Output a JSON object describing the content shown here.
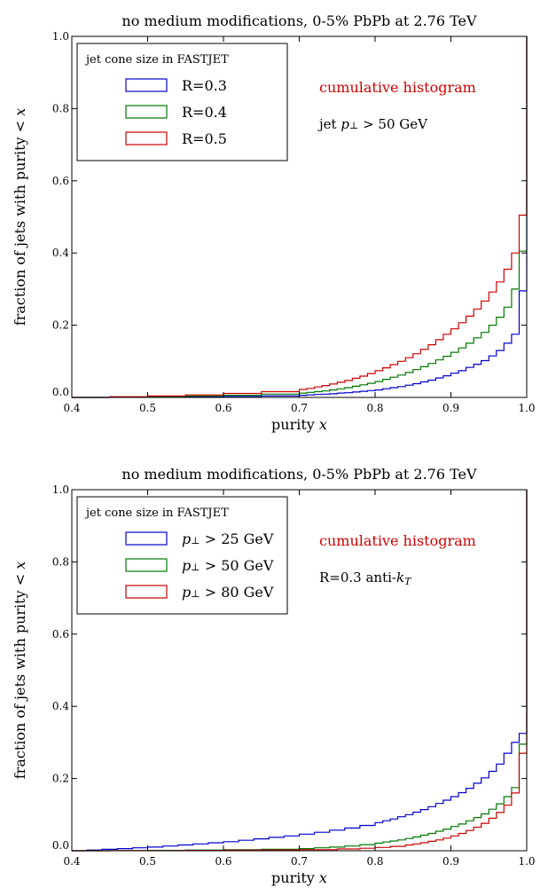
{
  "chart_data": [
    {
      "type": "step",
      "title": "no medium modifications, 0-5% PbPb at 2.76 TeV",
      "xlabel": "purity x",
      "ylabel": "fraction of jets with purity < x",
      "xlim": [
        0.4,
        1.0
      ],
      "ylim": [
        0.0,
        1.0
      ],
      "xticks": [
        "0.4",
        "0.5",
        "0.6",
        "0.7",
        "0.8",
        "0.9",
        "1.0"
      ],
      "yticks": [
        "0.0",
        "0.2",
        "0.4",
        "0.6",
        "0.8",
        "1.0"
      ],
      "legend_title": "jet cone size in FASTJET",
      "legend_position": "top-left",
      "annotation_red": "cumulative histogram",
      "annotation": "jet p⊥ > 50 GeV",
      "series": [
        {
          "name": "R=0.3",
          "color": "#0000cc",
          "x": [
            0.4,
            0.45,
            0.5,
            0.55,
            0.6,
            0.65,
            0.7,
            0.71,
            0.72,
            0.73,
            0.74,
            0.75,
            0.76,
            0.77,
            0.78,
            0.79,
            0.8,
            0.81,
            0.82,
            0.83,
            0.84,
            0.85,
            0.86,
            0.87,
            0.88,
            0.89,
            0.9,
            0.91,
            0.92,
            0.93,
            0.94,
            0.95,
            0.96,
            0.97,
            0.98,
            0.99,
            1.0
          ],
          "y": [
            0.0,
            0.0005,
            0.001,
            0.002,
            0.003,
            0.004,
            0.006,
            0.007,
            0.008,
            0.009,
            0.01,
            0.012,
            0.013,
            0.015,
            0.017,
            0.019,
            0.021,
            0.024,
            0.027,
            0.03,
            0.034,
            0.038,
            0.043,
            0.048,
            0.054,
            0.06,
            0.067,
            0.074,
            0.083,
            0.092,
            0.102,
            0.115,
            0.13,
            0.15,
            0.175,
            0.295,
            1.0
          ]
        },
        {
          "name": "R=0.4",
          "color": "#007700",
          "x": [
            0.4,
            0.45,
            0.5,
            0.55,
            0.6,
            0.65,
            0.7,
            0.71,
            0.72,
            0.73,
            0.74,
            0.75,
            0.76,
            0.77,
            0.78,
            0.79,
            0.8,
            0.81,
            0.82,
            0.83,
            0.84,
            0.85,
            0.86,
            0.87,
            0.88,
            0.89,
            0.9,
            0.91,
            0.92,
            0.93,
            0.94,
            0.95,
            0.96,
            0.97,
            0.98,
            0.99,
            1.0
          ],
          "y": [
            0.0,
            0.001,
            0.002,
            0.004,
            0.006,
            0.009,
            0.012,
            0.014,
            0.016,
            0.018,
            0.021,
            0.024,
            0.027,
            0.031,
            0.035,
            0.039,
            0.044,
            0.05,
            0.056,
            0.062,
            0.069,
            0.077,
            0.085,
            0.094,
            0.104,
            0.114,
            0.125,
            0.137,
            0.15,
            0.165,
            0.18,
            0.2,
            0.222,
            0.25,
            0.3,
            0.405,
            1.0
          ]
        },
        {
          "name": "R=0.5",
          "color": "#cc0000",
          "x": [
            0.4,
            0.45,
            0.5,
            0.55,
            0.6,
            0.65,
            0.7,
            0.71,
            0.72,
            0.73,
            0.74,
            0.75,
            0.76,
            0.77,
            0.78,
            0.79,
            0.8,
            0.81,
            0.82,
            0.83,
            0.84,
            0.85,
            0.86,
            0.87,
            0.88,
            0.89,
            0.9,
            0.91,
            0.92,
            0.93,
            0.94,
            0.95,
            0.96,
            0.97,
            0.98,
            0.99,
            1.0
          ],
          "y": [
            0.0,
            0.002,
            0.004,
            0.007,
            0.011,
            0.016,
            0.022,
            0.025,
            0.029,
            0.033,
            0.037,
            0.042,
            0.047,
            0.053,
            0.059,
            0.066,
            0.074,
            0.082,
            0.091,
            0.1,
            0.11,
            0.121,
            0.133,
            0.146,
            0.16,
            0.175,
            0.19,
            0.207,
            0.225,
            0.245,
            0.267,
            0.292,
            0.32,
            0.355,
            0.4,
            0.505,
            1.0
          ]
        }
      ]
    },
    {
      "type": "step",
      "title": "no medium modifications, 0-5% PbPb at 2.76 TeV",
      "xlabel": "purity x",
      "ylabel": "fraction of jets with purity < x",
      "xlim": [
        0.4,
        1.0
      ],
      "ylim": [
        0.0,
        1.0
      ],
      "xticks": [
        "0.4",
        "0.5",
        "0.6",
        "0.7",
        "0.8",
        "0.9",
        "1.0"
      ],
      "yticks": [
        "0.0",
        "0.2",
        "0.4",
        "0.6",
        "0.8",
        "1.0"
      ],
      "legend_title": "jet cone size in FASTJET",
      "legend_position": "top-left",
      "annotation_red": "cumulative histogram",
      "annotation": "R=0.3 anti-kT",
      "series": [
        {
          "name": "p⊥ > 25 GeV",
          "color": "#0000cc",
          "x": [
            0.4,
            0.42,
            0.44,
            0.46,
            0.48,
            0.5,
            0.52,
            0.54,
            0.56,
            0.58,
            0.6,
            0.62,
            0.64,
            0.66,
            0.68,
            0.7,
            0.72,
            0.74,
            0.76,
            0.78,
            0.8,
            0.81,
            0.82,
            0.83,
            0.84,
            0.85,
            0.86,
            0.87,
            0.88,
            0.89,
            0.9,
            0.91,
            0.92,
            0.93,
            0.94,
            0.95,
            0.96,
            0.97,
            0.98,
            0.99,
            1.0
          ],
          "y": [
            0.0,
            0.002,
            0.004,
            0.006,
            0.008,
            0.01,
            0.013,
            0.016,
            0.019,
            0.022,
            0.025,
            0.029,
            0.033,
            0.037,
            0.041,
            0.046,
            0.051,
            0.057,
            0.063,
            0.07,
            0.078,
            0.083,
            0.088,
            0.094,
            0.1,
            0.107,
            0.114,
            0.122,
            0.131,
            0.14,
            0.15,
            0.161,
            0.173,
            0.187,
            0.202,
            0.22,
            0.24,
            0.27,
            0.3,
            0.325,
            1.0
          ]
        },
        {
          "name": "p⊥ > 50 GeV",
          "color": "#007700",
          "x": [
            0.4,
            0.45,
            0.5,
            0.55,
            0.6,
            0.65,
            0.7,
            0.72,
            0.74,
            0.76,
            0.78,
            0.8,
            0.81,
            0.82,
            0.83,
            0.84,
            0.85,
            0.86,
            0.87,
            0.88,
            0.89,
            0.9,
            0.91,
            0.92,
            0.93,
            0.94,
            0.95,
            0.96,
            0.97,
            0.98,
            0.99,
            1.0
          ],
          "y": [
            0.0,
            0.0005,
            0.001,
            0.002,
            0.003,
            0.004,
            0.006,
            0.008,
            0.01,
            0.013,
            0.017,
            0.021,
            0.024,
            0.027,
            0.03,
            0.034,
            0.038,
            0.043,
            0.048,
            0.054,
            0.06,
            0.067,
            0.074,
            0.083,
            0.092,
            0.102,
            0.115,
            0.13,
            0.15,
            0.175,
            0.295,
            1.0
          ]
        },
        {
          "name": "p⊥ > 80 GeV",
          "color": "#cc0000",
          "x": [
            0.4,
            0.45,
            0.5,
            0.55,
            0.6,
            0.65,
            0.7,
            0.75,
            0.78,
            0.8,
            0.82,
            0.84,
            0.85,
            0.86,
            0.87,
            0.88,
            0.89,
            0.9,
            0.91,
            0.92,
            0.93,
            0.94,
            0.95,
            0.96,
            0.97,
            0.98,
            0.99,
            1.0
          ],
          "y": [
            0.0,
            0.0003,
            0.0006,
            0.001,
            0.0015,
            0.002,
            0.003,
            0.005,
            0.007,
            0.009,
            0.012,
            0.016,
            0.019,
            0.022,
            0.026,
            0.03,
            0.035,
            0.041,
            0.048,
            0.056,
            0.065,
            0.076,
            0.09,
            0.106,
            0.126,
            0.16,
            0.27,
            1.0
          ]
        }
      ]
    }
  ]
}
